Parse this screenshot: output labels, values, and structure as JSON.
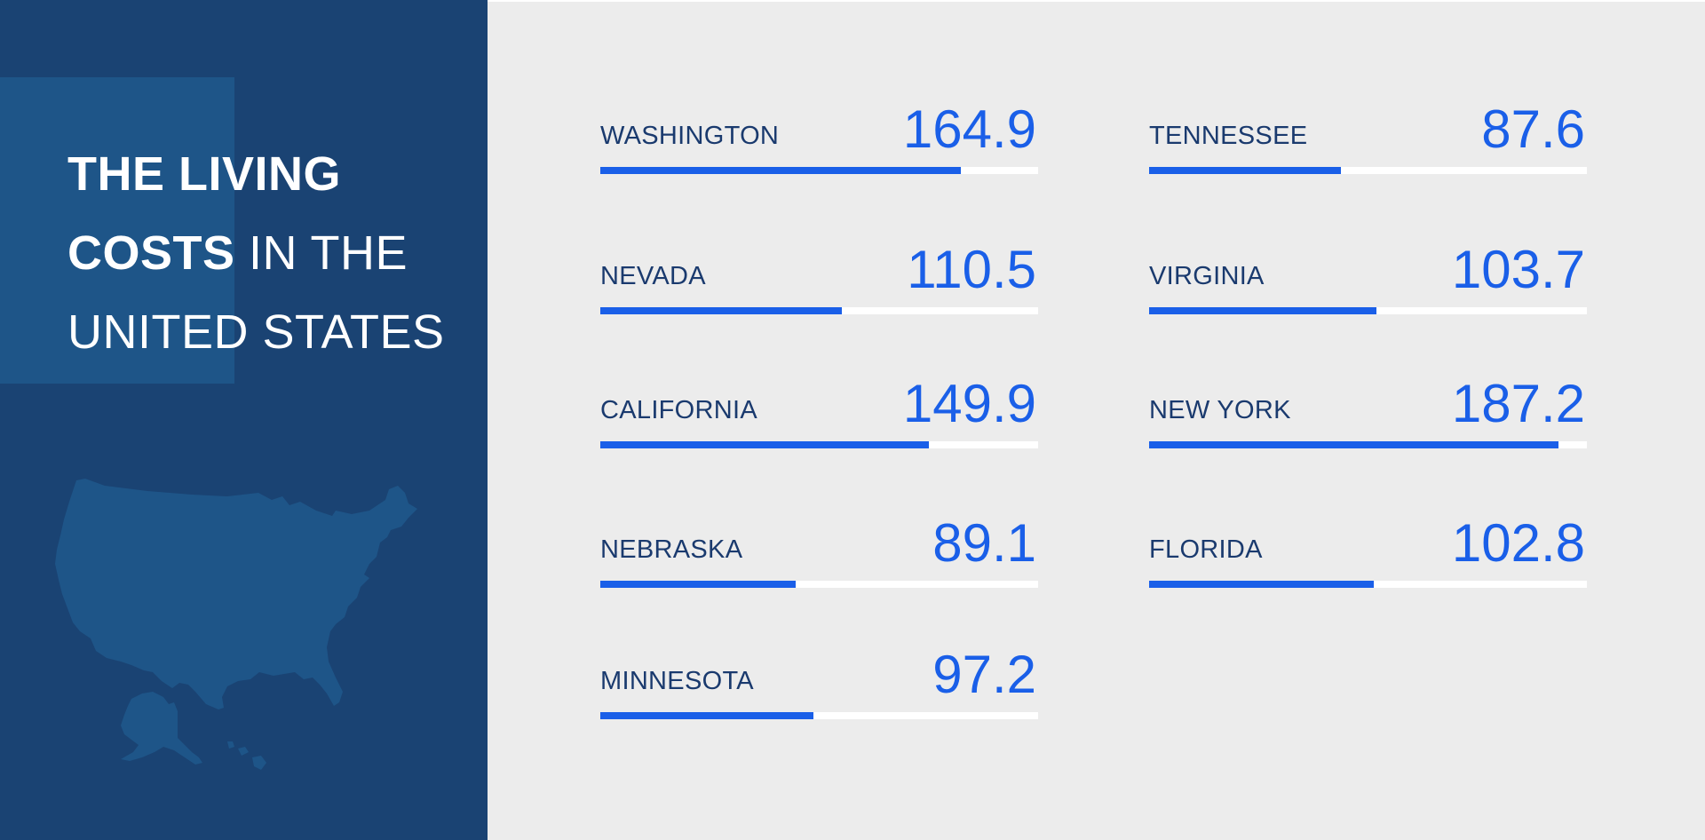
{
  "title": {
    "line1_bold": "THE LIVING",
    "line2_bold": "COSTS",
    "line2_light": " IN THE",
    "line3_light": "UNITED STATES"
  },
  "colors": {
    "panel": "#1a4373",
    "panel_accent": "#1e5588",
    "background": "#ececec",
    "bar": "#1a5fe8",
    "track": "#ffffff",
    "label": "#1a3a6e",
    "value": "#1a5fe8"
  },
  "icons": {
    "map": "usa-map-icon"
  },
  "chart_data": {
    "type": "bar",
    "orientation": "horizontal",
    "title": "THE LIVING COSTS IN THE UNITED STATES",
    "scale_max": 200,
    "categories": [
      "WASHINGTON",
      "NEVADA",
      "CALIFORNIA",
      "NEBRASKA",
      "MINNESOTA",
      "TENNESSEE",
      "VIRGINIA",
      "NEW YORK",
      "FLORIDA"
    ],
    "values": [
      164.9,
      110.5,
      149.9,
      89.1,
      97.2,
      87.6,
      103.7,
      187.2,
      102.8
    ],
    "value_labels": [
      "164.9",
      "110.5",
      "149.9",
      "89.1",
      "97.2",
      "87.6",
      "103.7",
      "187.2",
      "102.8"
    ],
    "layout": "two columns"
  }
}
